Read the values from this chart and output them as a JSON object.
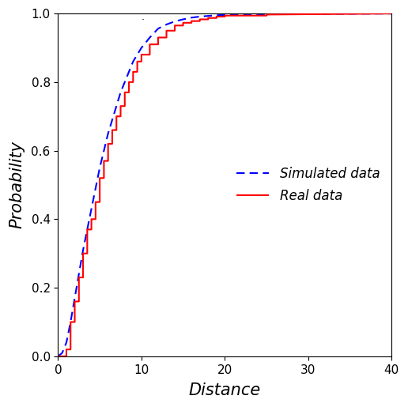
{
  "title": ".",
  "xlabel": "Distance",
  "ylabel": "Probability",
  "xlim": [
    0,
    40
  ],
  "ylim": [
    0.0,
    1.0
  ],
  "xticks": [
    0,
    10,
    20,
    30,
    40
  ],
  "yticks": [
    0.0,
    0.2,
    0.4,
    0.6,
    0.8,
    1.0
  ],
  "real_color": "#FF0000",
  "sim_color": "#0000FF",
  "real_label": "Real data",
  "sim_label": "Simulated data",
  "legend_loc": "center right",
  "legend_fontsize": 12,
  "axis_label_fontsize": 15,
  "tick_fontsize": 11,
  "background_color": "#FFFFFF",
  "real_data_x": [
    0,
    1,
    1,
    1.5,
    1.5,
    2,
    2,
    2.5,
    2.5,
    3,
    3,
    3.5,
    3.5,
    4,
    4,
    4.5,
    4.5,
    5,
    5,
    5.5,
    5.5,
    6,
    6,
    6.5,
    6.5,
    7,
    7,
    7.5,
    7.5,
    8,
    8,
    8.5,
    8.5,
    9,
    9,
    9.5,
    9.5,
    10,
    10,
    11,
    11,
    12,
    12,
    13,
    13,
    14,
    14,
    15,
    15,
    16,
    16,
    17,
    17,
    18,
    18,
    19,
    19,
    20,
    20,
    25,
    25,
    40
  ],
  "real_data_y": [
    0,
    0,
    0.02,
    0.02,
    0.1,
    0.1,
    0.16,
    0.16,
    0.23,
    0.23,
    0.3,
    0.3,
    0.37,
    0.37,
    0.4,
    0.4,
    0.45,
    0.45,
    0.52,
    0.52,
    0.57,
    0.57,
    0.62,
    0.62,
    0.66,
    0.66,
    0.7,
    0.7,
    0.73,
    0.73,
    0.77,
    0.77,
    0.8,
    0.8,
    0.83,
    0.83,
    0.86,
    0.86,
    0.88,
    0.88,
    0.91,
    0.91,
    0.93,
    0.93,
    0.95,
    0.95,
    0.965,
    0.965,
    0.973,
    0.973,
    0.978,
    0.978,
    0.983,
    0.983,
    0.987,
    0.987,
    0.991,
    0.991,
    0.994,
    0.994,
    0.997,
    1.0
  ],
  "sim_data_x": [
    0,
    0.5,
    1,
    1.5,
    2,
    2.5,
    3,
    3.5,
    4,
    4.5,
    5,
    5.5,
    6,
    6.5,
    7,
    7.5,
    8,
    8.5,
    9,
    9.5,
    10,
    11,
    12,
    13,
    14,
    15,
    16,
    17,
    18,
    19,
    20,
    25,
    30,
    40
  ],
  "sim_data_y": [
    0,
    0.01,
    0.04,
    0.1,
    0.17,
    0.24,
    0.31,
    0.37,
    0.43,
    0.49,
    0.55,
    0.6,
    0.65,
    0.69,
    0.73,
    0.77,
    0.8,
    0.83,
    0.86,
    0.88,
    0.9,
    0.93,
    0.956,
    0.968,
    0.977,
    0.983,
    0.988,
    0.991,
    0.993,
    0.995,
    0.996,
    0.998,
    0.999,
    1.0
  ]
}
